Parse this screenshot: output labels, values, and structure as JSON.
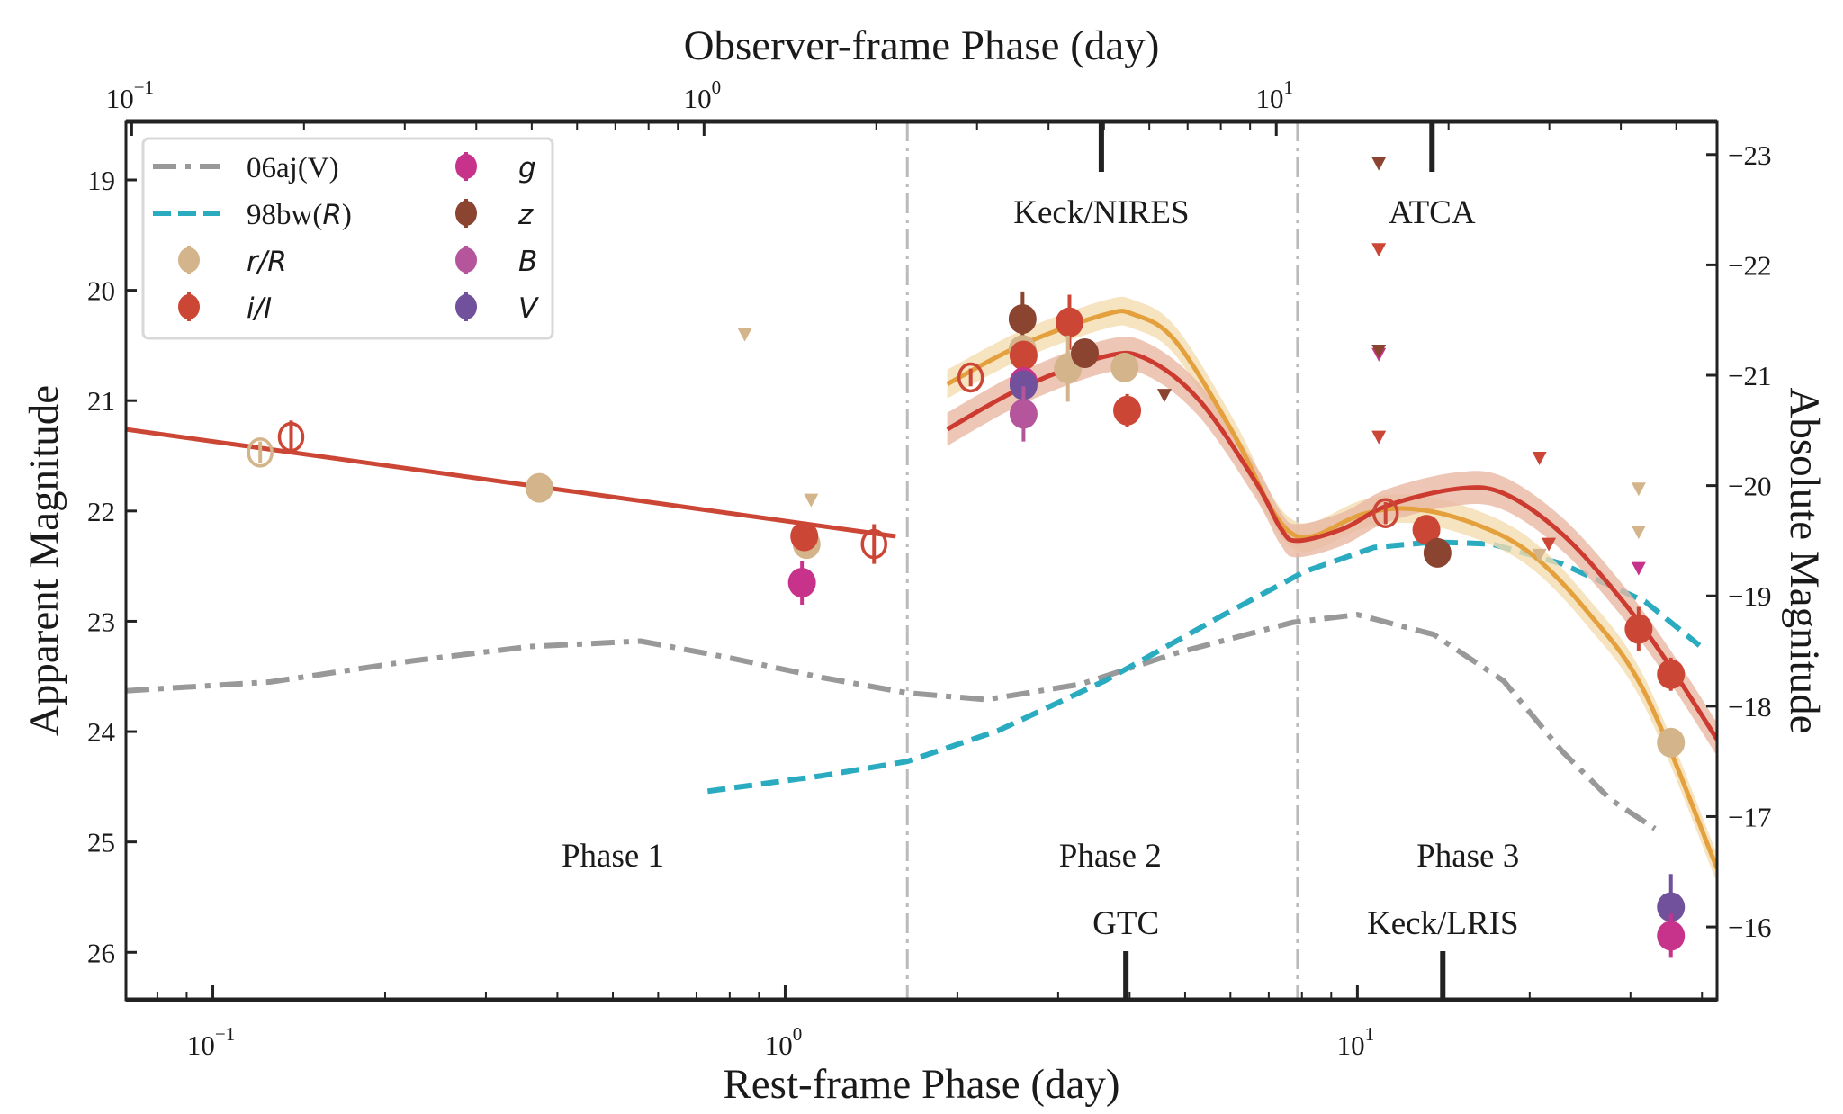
{
  "chart_data": {
    "type": "scatter",
    "xlabel": "Rest-frame Phase (day)",
    "x2label": "Observer-frame Phase (day)",
    "ylabel": "Apparent Magnitude",
    "y2label": "Absolute Magnitude",
    "xscale": "log",
    "xlim": [
      0.0705,
      42.5
    ],
    "ylim": [
      26.43,
      18.47
    ],
    "y_inverted": true,
    "observer_to_rest_factor": 1.386,
    "absolute_offset": -41.77,
    "xticks": [
      {
        "v": 0.1,
        "b": "10",
        "e": "−1"
      },
      {
        "v": 1,
        "b": "10",
        "e": "0"
      },
      {
        "v": 10,
        "b": "10",
        "e": "1"
      }
    ],
    "yticks": [
      "19",
      "20",
      "21",
      "22",
      "23",
      "24",
      "25",
      "26"
    ],
    "y2ticks": [
      "−23",
      "−22",
      "−21",
      "−20",
      "−19",
      "−18",
      "−17",
      "−16"
    ],
    "grid": false,
    "legend_placement": "top-left",
    "phase_boundaries": [
      1.635,
      7.86
    ],
    "phase_labels": [
      {
        "text": "Phase 1",
        "x": 0.5
      },
      {
        "text": "Phase 2",
        "x": 3.7
      },
      {
        "text": "Phase 3",
        "x": 15.6
      }
    ],
    "instruments_top": [
      {
        "text": "Keck/NIRES",
        "x": 3.57
      },
      {
        "text": "ATCA",
        "x": 13.5
      }
    ],
    "instruments_bottom": [
      {
        "text": "GTC",
        "x": 3.94
      },
      {
        "text": "Keck/LRIS",
        "x": 14.1
      }
    ],
    "colors": {
      "r": "#d4b48a",
      "i": "#cc4636",
      "g": "#c7338a",
      "z": "#8a4430",
      "B": "#b5559b",
      "V": "#71519c",
      "model_r": "#e3a03c",
      "band_r": "#f4dcb0",
      "model_i": "#cc3a30",
      "band_i": "#e8b8a4",
      "sn06aj": "#999999",
      "sn98bw": "#2aabc0"
    },
    "legend": [
      {
        "label": "06aj(V)",
        "kind": "dashdot",
        "color": "sn06aj"
      },
      {
        "label": "98bw(",
        "label_italic": "R",
        "label_end": ")",
        "kind": "dashed",
        "color": "sn98bw"
      },
      {
        "label_italic": "r/R",
        "kind": "point",
        "color": "r"
      },
      {
        "label_italic": "i/I",
        "kind": "point",
        "color": "i"
      },
      {
        "label_italic": "g",
        "kind": "point",
        "color": "g"
      },
      {
        "label_italic": "z",
        "kind": "point",
        "color": "z"
      },
      {
        "label_italic": "B",
        "kind": "point",
        "color": "B"
      },
      {
        "label_italic": "V",
        "kind": "point",
        "color": "V"
      }
    ],
    "lines": [
      {
        "name": "06aj(V)",
        "color": "sn06aj",
        "style": "dashdot",
        "x": [
          0.0705,
          0.126,
          0.222,
          0.357,
          0.559,
          0.797,
          1.16,
          1.635,
          2.25,
          3.29,
          4.81,
          7.71,
          10.0,
          13.6,
          18.0,
          22.8,
          27.6,
          33.1
        ],
        "y": [
          23.63,
          23.55,
          23.36,
          23.23,
          23.18,
          23.33,
          23.51,
          23.65,
          23.71,
          23.57,
          23.29,
          23.01,
          22.94,
          23.12,
          23.54,
          24.18,
          24.61,
          24.88
        ]
      },
      {
        "name": "98bw(R)",
        "color": "sn98bw",
        "style": "dashed",
        "x": [
          0.732,
          1.16,
          1.635,
          2.36,
          3.62,
          5.8,
          8.08,
          10.7,
          13.6,
          17.2,
          22.8,
          31.8,
          39.6
        ],
        "y": [
          24.54,
          24.4,
          24.27,
          23.99,
          23.54,
          22.95,
          22.55,
          22.33,
          22.28,
          22.3,
          22.48,
          22.82,
          23.22
        ]
      },
      {
        "color": "i",
        "style": "solid",
        "x": [
          0.0705,
          1.56
        ],
        "y": [
          21.26,
          22.23
        ]
      }
    ],
    "models": [
      {
        "color": "model_r",
        "band": "band_r",
        "band_halfwidth": 0.13,
        "x": [
          1.92,
          2.6,
          3.62,
          4.07,
          4.81,
          6.09,
          7.02,
          7.71,
          8.47,
          10.2,
          12.4,
          15.7,
          19.9,
          25.1,
          31.8,
          42.5
        ],
        "y": [
          20.85,
          20.49,
          20.22,
          20.22,
          20.46,
          21.31,
          21.95,
          22.21,
          22.22,
          22.03,
          21.98,
          22.1,
          22.37,
          22.9,
          23.65,
          25.24
        ]
      },
      {
        "color": "model_i",
        "band": "band_i",
        "band_halfwidth": 0.15,
        "x": [
          1.92,
          2.6,
          3.62,
          4.27,
          5.28,
          6.63,
          7.35,
          7.86,
          9.45,
          11.3,
          14.9,
          18.0,
          22.8,
          28.9,
          34.9,
          42.5
        ],
        "y": [
          21.26,
          20.88,
          20.6,
          20.62,
          20.99,
          21.73,
          22.16,
          22.27,
          22.16,
          21.95,
          21.8,
          21.84,
          22.21,
          22.8,
          23.38,
          24.07
        ]
      }
    ],
    "points": [
      {
        "band": "r",
        "x": 0.121,
        "y": 21.47,
        "err": 0.1,
        "open": true
      },
      {
        "band": "i",
        "x": 0.137,
        "y": 21.33,
        "err": 0.15,
        "open": true
      },
      {
        "band": "r",
        "x": 0.372,
        "y": 21.79,
        "err": 0.08
      },
      {
        "band": "r",
        "x": 1.09,
        "y": 22.3,
        "err": 0.1
      },
      {
        "band": "i",
        "x": 1.08,
        "y": 22.23,
        "err": 0.12
      },
      {
        "band": "g",
        "x": 1.07,
        "y": 22.65,
        "err": 0.2
      },
      {
        "band": "i",
        "x": 1.43,
        "y": 22.3,
        "err": 0.18,
        "open": true
      },
      {
        "band": "i",
        "x": 2.11,
        "y": 20.79,
        "err": 0.08,
        "open": true
      },
      {
        "band": "z",
        "x": 2.6,
        "y": 20.26,
        "err": 0.25
      },
      {
        "band": "r",
        "x": 2.6,
        "y": 20.54,
        "err": 0.12
      },
      {
        "band": "i",
        "x": 2.61,
        "y": 20.59,
        "err": 0.12
      },
      {
        "band": "g",
        "x": 2.61,
        "y": 20.83,
        "err": 0.1
      },
      {
        "band": "V",
        "x": 2.61,
        "y": 20.86,
        "err": 0.12
      },
      {
        "band": "B",
        "x": 2.61,
        "y": 21.12,
        "err": 0.25
      },
      {
        "band": "i",
        "x": 3.14,
        "y": 20.29,
        "err": 0.25
      },
      {
        "band": "r",
        "x": 3.12,
        "y": 20.71,
        "err": 0.3
      },
      {
        "band": "z",
        "x": 3.34,
        "y": 20.57,
        "err": 0.1
      },
      {
        "band": "r",
        "x": 3.92,
        "y": 20.7,
        "err": 0.08
      },
      {
        "band": "i",
        "x": 3.96,
        "y": 21.09,
        "err": 0.15
      },
      {
        "band": "i",
        "x": 11.2,
        "y": 22.02,
        "err": 0.1,
        "open": true
      },
      {
        "band": "i",
        "x": 13.2,
        "y": 22.17,
        "err": 0.08
      },
      {
        "band": "z",
        "x": 13.8,
        "y": 22.38,
        "err": 0.1
      },
      {
        "band": "i",
        "x": 31.0,
        "y": 23.07,
        "err": 0.2
      },
      {
        "band": "i",
        "x": 35.3,
        "y": 23.48,
        "err": 0.15
      },
      {
        "band": "r",
        "x": 35.3,
        "y": 24.1,
        "err": 0.1
      },
      {
        "band": "V",
        "x": 35.3,
        "y": 25.59,
        "err": 0.3
      },
      {
        "band": "g",
        "x": 35.3,
        "y": 25.85,
        "err": 0.2
      }
    ],
    "upper_limits": [
      {
        "band": "r",
        "x": 0.85,
        "y": 20.4
      },
      {
        "band": "r",
        "x": 1.11,
        "y": 21.9
      },
      {
        "band": "z",
        "x": 4.6,
        "y": 20.95
      },
      {
        "band": "z",
        "x": 10.9,
        "y": 18.85
      },
      {
        "band": "i",
        "x": 10.9,
        "y": 19.63
      },
      {
        "band": "g",
        "x": 10.9,
        "y": 20.58
      },
      {
        "band": "z",
        "x": 10.9,
        "y": 20.55
      },
      {
        "band": "i",
        "x": 10.9,
        "y": 21.33
      },
      {
        "band": "i",
        "x": 20.8,
        "y": 21.52
      },
      {
        "band": "i",
        "x": 21.6,
        "y": 22.3
      },
      {
        "band": "r",
        "x": 20.8,
        "y": 22.4
      },
      {
        "band": "r",
        "x": 31.0,
        "y": 21.8
      },
      {
        "band": "r",
        "x": 31.0,
        "y": 22.19
      },
      {
        "band": "g",
        "x": 31.0,
        "y": 22.52
      }
    ]
  }
}
